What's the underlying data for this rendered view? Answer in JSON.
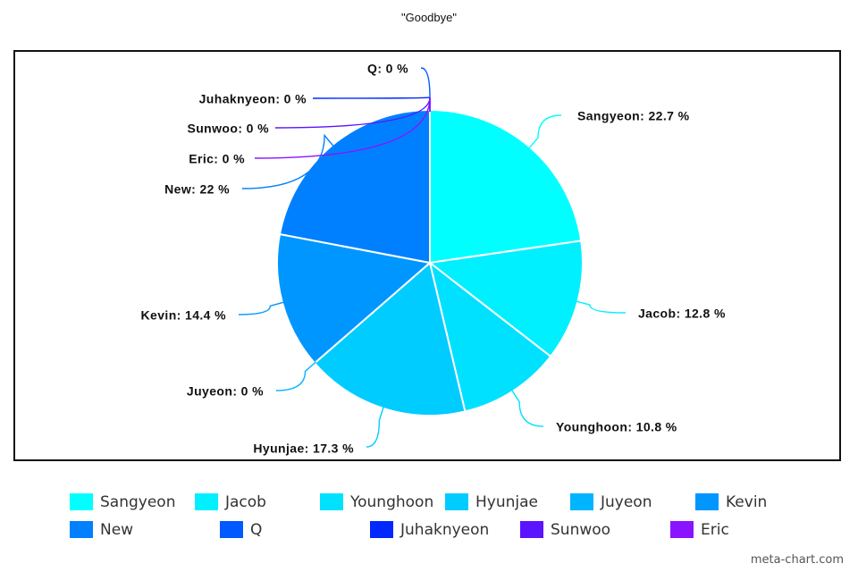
{
  "chart_data": {
    "type": "pie",
    "title": "\"Goodbye\"",
    "slices": [
      {
        "name": "Sangyeon",
        "value": 22.7,
        "label": "Sangyeon: 22.7 %",
        "color": "#00FFFF"
      },
      {
        "name": "Jacob",
        "value": 12.8,
        "label": "Jacob: 12.8 %",
        "color": "#00F0FF"
      },
      {
        "name": "Younghoon",
        "value": 10.8,
        "label": "Younghoon: 10.8 %",
        "color": "#00E1FF"
      },
      {
        "name": "Hyunjae",
        "value": 17.3,
        "label": "Hyunjae: 17.3 %",
        "color": "#00CCFF"
      },
      {
        "name": "Juyeon",
        "value": 0,
        "label": "Juyeon: 0 %",
        "color": "#00B4FF"
      },
      {
        "name": "Kevin",
        "value": 14.4,
        "label": "Kevin: 14.4 %",
        "color": "#0096FF"
      },
      {
        "name": "New",
        "value": 22,
        "label": "New: 22 %",
        "color": "#0080FF"
      },
      {
        "name": "Q",
        "value": 0,
        "label": "Q: 0 %",
        "color": "#005AFF"
      },
      {
        "name": "Juhaknyeon",
        "value": 0,
        "label": "Juhaknyeon: 0 %",
        "color": "#0028FF"
      },
      {
        "name": "Sunwoo",
        "value": 0,
        "label": "Sunwoo: 0 %",
        "color": "#5A14FF"
      },
      {
        "name": "Eric",
        "value": 0,
        "label": "Eric: 0 %",
        "color": "#8A14FF"
      }
    ],
    "legend": "bottom"
  },
  "credit": "meta-chart.com"
}
